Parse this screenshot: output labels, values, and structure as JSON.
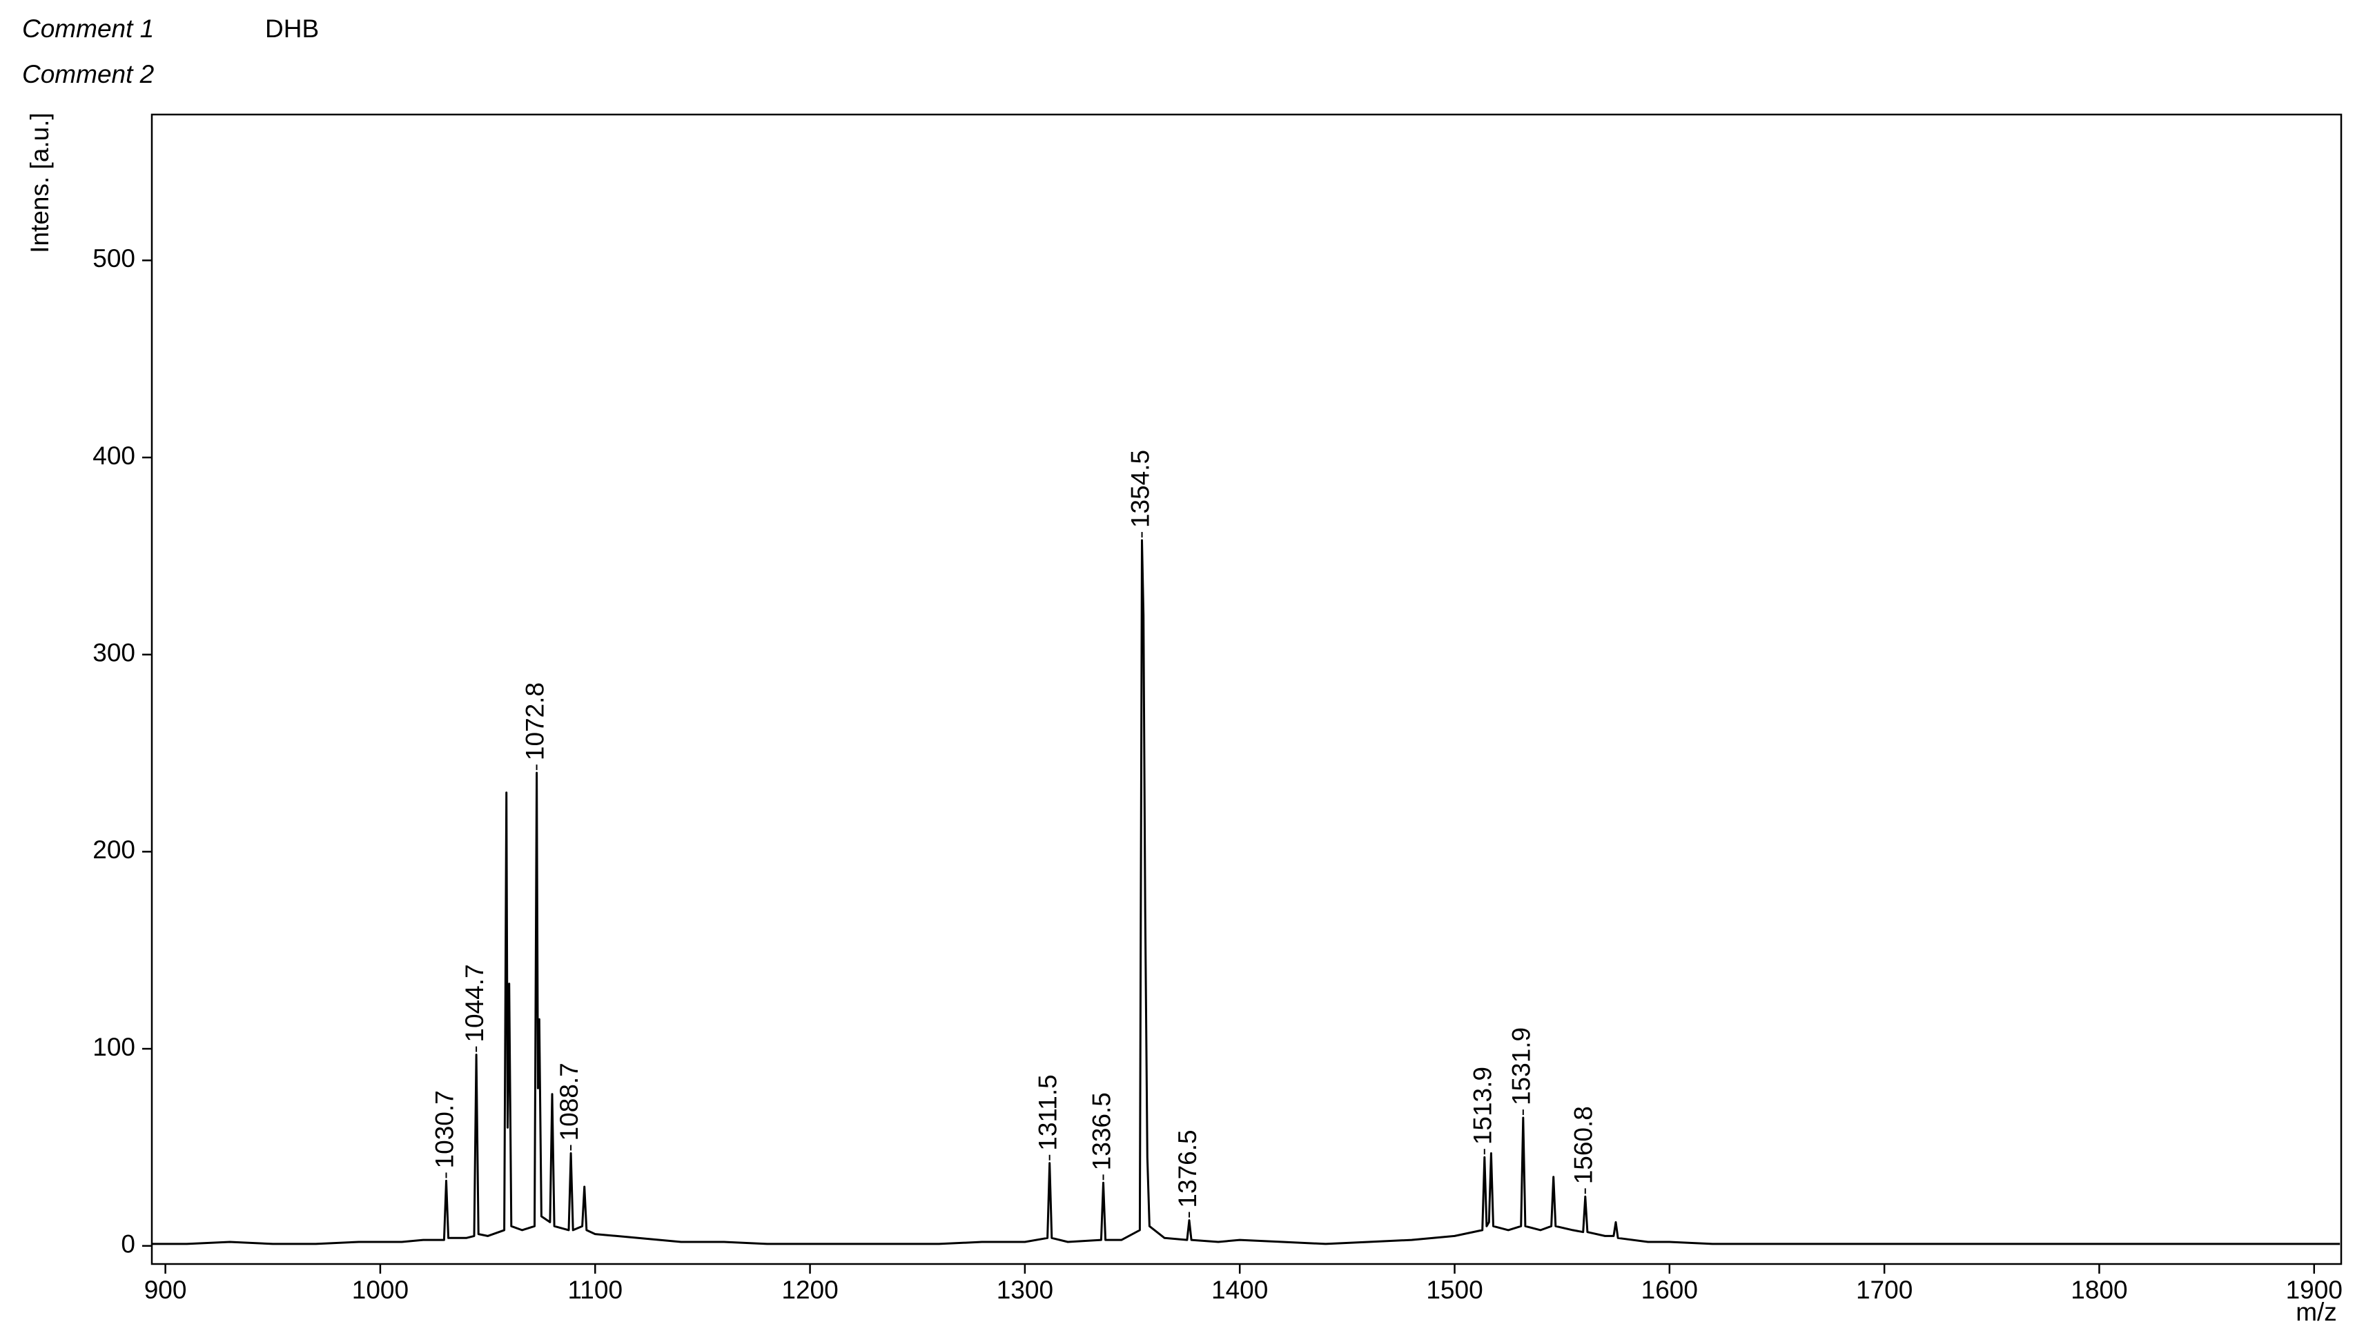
{
  "chart_data": {
    "type": "line",
    "comments": [
      {
        "label": "Comment 1",
        "text": "DHB"
      },
      {
        "label": "Comment 2"
      }
    ],
    "y_label": "Intens. [a.u.]",
    "x_label": "m/z",
    "xlim": [
      893.7,
      1912.6
    ],
    "ylim": [
      -9.2,
      574
    ],
    "xticks": [
      900,
      1000,
      1100,
      1200,
      1300,
      1400,
      1500,
      1600,
      1700,
      1800,
      1900
    ],
    "yticks": [
      0,
      100,
      200,
      300,
      400,
      500
    ],
    "series": [
      {
        "color": "#000000",
        "x": [
          894,
          910,
          930,
          950,
          970,
          990,
          1010,
          1020,
          1029.7,
          1030.7,
          1031.7,
          1040,
          1043.7,
          1044.7,
          1045.7,
          1050,
          1057.7,
          1058.7,
          1059.3,
          1060,
          1061,
          1066,
          1071.8,
          1072.8,
          1073.4,
          1074,
          1075,
          1079,
          1080,
          1081,
          1087.7,
          1088.7,
          1089.7,
          1094,
          1095,
          1096,
          1100,
          1110,
          1120,
          1140,
          1160,
          1180,
          1200,
          1220,
          1240,
          1260,
          1280,
          1300,
          1310.5,
          1311.5,
          1312.5,
          1320,
          1335.5,
          1336.5,
          1337.5,
          1345,
          1353.5,
          1354.5,
          1355.2,
          1356,
          1357,
          1358,
          1365,
          1375.5,
          1376.5,
          1377.5,
          1390,
          1400,
          1420,
          1440,
          1460,
          1480,
          1500,
          1512.9,
          1513.9,
          1514.9,
          1516,
          1517,
          1518,
          1525,
          1530.9,
          1531.9,
          1532.9,
          1540,
          1545,
          1546,
          1547,
          1555,
          1559.8,
          1560.8,
          1561.8,
          1570,
          1574,
          1575,
          1576,
          1590,
          1600,
          1620,
          1650,
          1700,
          1750,
          1800,
          1850,
          1900,
          1912
        ],
        "values": [
          1,
          1,
          2,
          1,
          1,
          2,
          2,
          3,
          3,
          33,
          4,
          4,
          5,
          97,
          6,
          5,
          8,
          230,
          60,
          133,
          10,
          8,
          10,
          240,
          80,
          115,
          15,
          12,
          77,
          10,
          8,
          47,
          8,
          10,
          30,
          8,
          6,
          5,
          4,
          2,
          2,
          1,
          1,
          1,
          1,
          1,
          2,
          2,
          4,
          42,
          4,
          2,
          3,
          32,
          3,
          3,
          8,
          358,
          320,
          170,
          45,
          10,
          4,
          3,
          13,
          3,
          2,
          3,
          2,
          1,
          2,
          3,
          5,
          8,
          45,
          10,
          12,
          47,
          10,
          8,
          10,
          65,
          10,
          8,
          10,
          35,
          10,
          8,
          7,
          25,
          7,
          5,
          5,
          12,
          4,
          2,
          2,
          1,
          1,
          1,
          1,
          1,
          1,
          1,
          1
        ]
      }
    ],
    "peaks": [
      {
        "x": 1030.7,
        "y": 33
      },
      {
        "x": 1044.7,
        "y": 97
      },
      {
        "x": 1072.8,
        "y": 240
      },
      {
        "x": 1088.7,
        "y": 47
      },
      {
        "x": 1311.5,
        "y": 42
      },
      {
        "x": 1336.5,
        "y": 32
      },
      {
        "x": 1354.5,
        "y": 358
      },
      {
        "x": 1376.5,
        "y": 13
      },
      {
        "x": 1513.9,
        "y": 45
      },
      {
        "x": 1531.9,
        "y": 65
      },
      {
        "x": 1560.8,
        "y": 25
      }
    ]
  }
}
